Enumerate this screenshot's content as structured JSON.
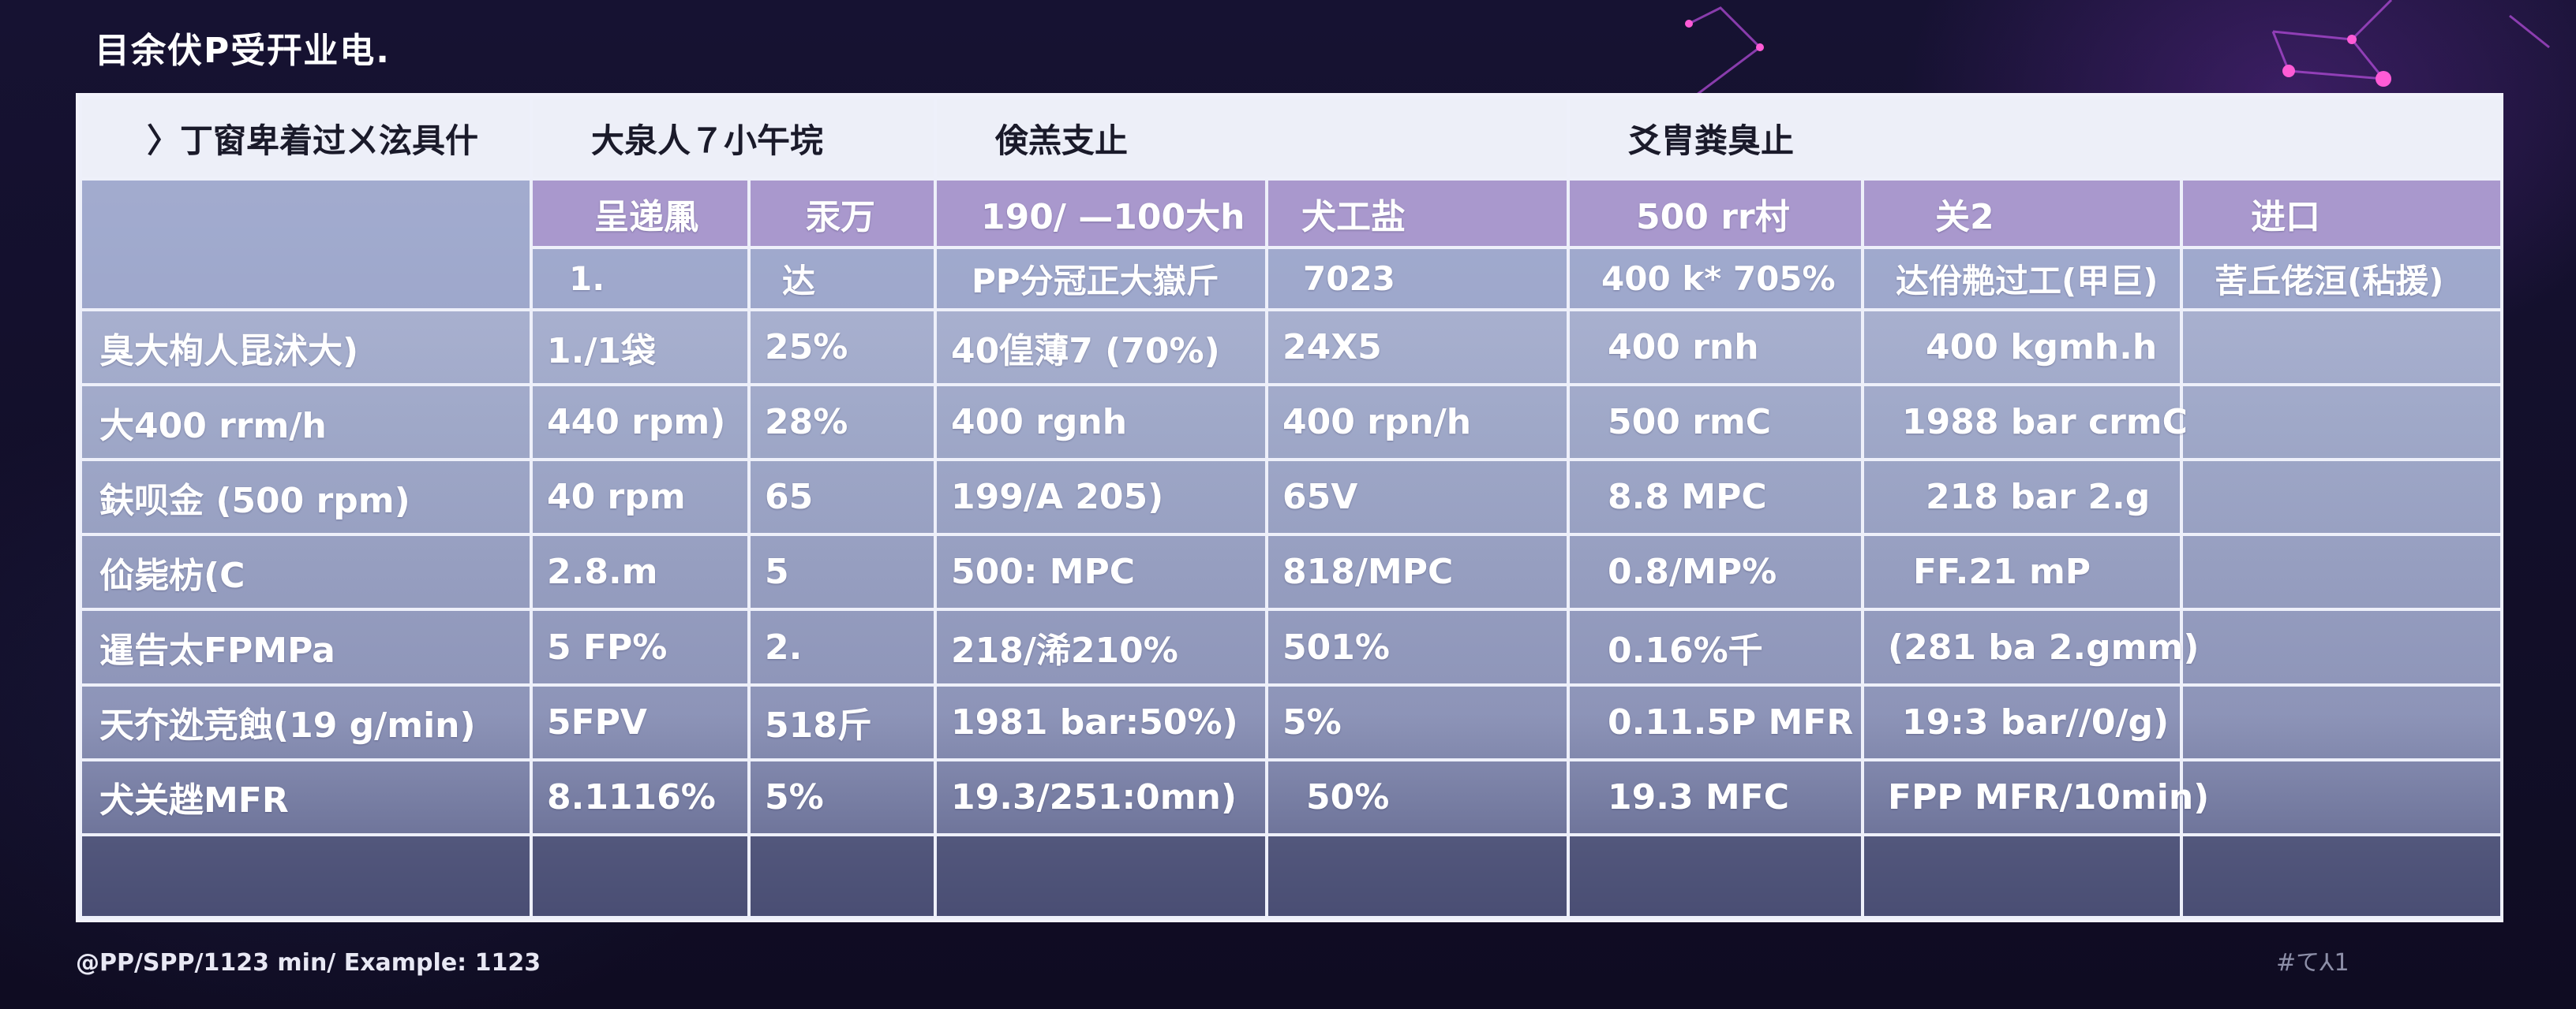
{
  "title": "目余伏P受幵业电.",
  "table": {
    "group_headers": [
      "〉丁窗卑着过ㄨ泫具什",
      "大泉人７小午垸",
      "倹羔支止",
      "爻胄粪臭止"
    ],
    "sub_headers": [
      "呈递凲",
      "汞万",
      "190/ —100大h",
      "犬工盐",
      "500 rr村",
      "关2",
      "进口"
    ],
    "sub_headers2": [
      "1.",
      "达",
      "PP分冠正大嶽斤",
      "7023",
      "400 k* 705%",
      "达佾艴过工(甲巨)",
      "䒷丘佬洹(秥援)"
    ],
    "rows": [
      [
        "臭大栒人昆沭大)",
        "1./1袋",
        "25%",
        "40偟薄7 (70%)",
        "24X5",
        "400 rnh",
        "400 kgmh.h",
        ""
      ],
      [
        "大400 rrm/h",
        "440 rpm)",
        "28%",
        "400 rgnh",
        "400 rpn/h",
        "500 rmC",
        "1988 bar crmC",
        ""
      ],
      [
        "鈇呗金 (500 rpm)",
        "40 rpm",
        "65",
        "199/A 205)",
        "65V",
        "8.8 MPC",
        "218 bar 2.g",
        ""
      ],
      [
        "佡毙枋(C",
        "2.8.m",
        "5",
        "500: MPC",
        "818/MPC",
        "0.8/MP%",
        "FF.21 mP",
        ""
      ],
      [
        "暹告太FPMPa",
        "5 FP%",
        "2.",
        "218/浠210%",
        "501%",
        "0.16%千",
        "(281 ba 2.gmm)",
        ""
      ],
      [
        "天夰迯竞蝕(19 g/min)",
        "5FPV",
        "518斤",
        "1981 bar:50%)",
        "5%",
        "0.11.5P MFR",
        "19:3 bar//0/g)",
        ""
      ],
      [
        "犬关趖MFR",
        "8.1116%",
        "5%",
        "19.3/251:0mn)",
        "50%",
        "19.3 MFC",
        "FPP MFR/10min)",
        ""
      ]
    ]
  },
  "footer": {
    "left": "@PP/SPP/1123 min/ Example: 1123",
    "right": "#て⅄1"
  }
}
